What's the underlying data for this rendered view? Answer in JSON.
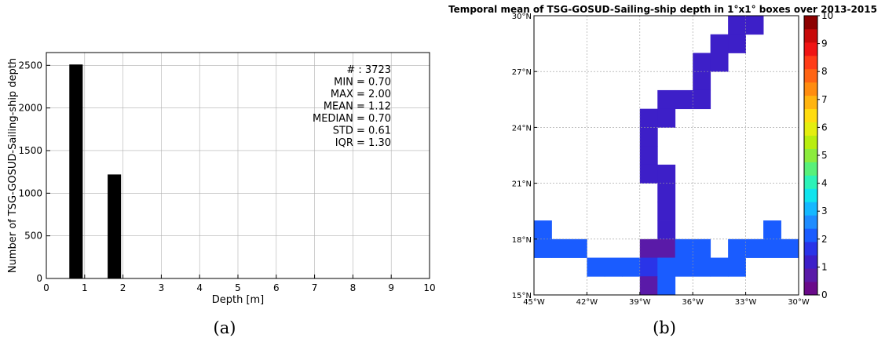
{
  "chart_data": [
    {
      "type": "bar",
      "panel_caption": "(a)",
      "title": "",
      "xlabel": "Depth [m]",
      "ylabel": "Number of TSG-GOSUD-Sailing-ship depth",
      "xlim": [
        0,
        10
      ],
      "ylim": [
        0,
        2650
      ],
      "xticks": [
        "0",
        "1",
        "2",
        "3",
        "4",
        "5",
        "6",
        "7",
        "8",
        "9",
        "10"
      ],
      "yticks": [
        "0",
        "500",
        "1000",
        "1500",
        "2000",
        "2500"
      ],
      "grid": true,
      "bars": [
        {
          "x_start": 0.6,
          "x_end": 0.95,
          "value": 2510
        },
        {
          "x_start": 1.6,
          "x_end": 1.95,
          "value": 1220
        }
      ],
      "stats": [
        "# : 3723",
        "MIN = 0.70",
        "MAX =  2.00",
        "MEAN = 1.12",
        "MEDIAN = 0.70",
        "STD = 0.61",
        "IQR = 1.30"
      ],
      "colors": {
        "bar": "#000000",
        "grid": "#b0b0b0"
      }
    },
    {
      "type": "heatmap",
      "panel_caption": "(b)",
      "title": "Temporal mean of TSG-GOSUD-Sailing-ship depth in 1°x1° boxes over 2013-2015",
      "xlim": [
        -45,
        -30
      ],
      "ylim": [
        15,
        30
      ],
      "xticks": [
        "45°W",
        "42°W",
        "39°W",
        "36°W",
        "33°W",
        "30°W"
      ],
      "yticks": [
        "15°N",
        "18°N",
        "21°N",
        "24°N",
        "27°N",
        "30°N"
      ],
      "grid": true,
      "colorbar": {
        "range": [
          0,
          10
        ],
        "ticks": [
          "0",
          "1",
          "2",
          "3",
          "4",
          "5",
          "6",
          "7",
          "8",
          "9",
          "10"
        ],
        "colors": [
          "#6a0a8a",
          "#5a1aa8",
          "#3d1fc8",
          "#2a34e8",
          "#1a5cff",
          "#1f8cff",
          "#15b8ff",
          "#10e4ee",
          "#2cf2b8",
          "#58f07a",
          "#8cec3e",
          "#b8ee10",
          "#e4ee10",
          "#ffdc10",
          "#ffb410",
          "#ff8c10",
          "#ff6414",
          "#ff3c18",
          "#f01414",
          "#c80a0a",
          "#8c0000"
        ]
      },
      "cells": [
        {
          "lon": -34,
          "lat": 29,
          "value": 1.2
        },
        {
          "lon": -33,
          "lat": 29,
          "value": 1.2
        },
        {
          "lon": -35,
          "lat": 28,
          "value": 1.2
        },
        {
          "lon": -34,
          "lat": 28,
          "value": 1.2
        },
        {
          "lon": -36,
          "lat": 27,
          "value": 1.2
        },
        {
          "lon": -35,
          "lat": 27,
          "value": 1.2
        },
        {
          "lon": -36,
          "lat": 26,
          "value": 1.2
        },
        {
          "lon": -38,
          "lat": 25,
          "value": 1.2
        },
        {
          "lon": -37,
          "lat": 25,
          "value": 1.2
        },
        {
          "lon": -36,
          "lat": 25,
          "value": 1.2
        },
        {
          "lon": -39,
          "lat": 24,
          "value": 1.2
        },
        {
          "lon": -38,
          "lat": 24,
          "value": 1.2
        },
        {
          "lon": -39,
          "lat": 23,
          "value": 1.2
        },
        {
          "lon": -39,
          "lat": 22,
          "value": 1.2
        },
        {
          "lon": -39,
          "lat": 21,
          "value": 1.2
        },
        {
          "lon": -38,
          "lat": 21,
          "value": 1.2
        },
        {
          "lon": -38,
          "lat": 20,
          "value": 1.2
        },
        {
          "lon": -38,
          "lat": 19,
          "value": 1.2
        },
        {
          "lon": -38,
          "lat": 18,
          "value": 1.2
        },
        {
          "lon": -45,
          "lat": 18,
          "value": 2.2
        },
        {
          "lon": -32,
          "lat": 18,
          "value": 2.2
        },
        {
          "lon": -45,
          "lat": 17,
          "value": 2.2
        },
        {
          "lon": -44,
          "lat": 17,
          "value": 2.2
        },
        {
          "lon": -43,
          "lat": 17,
          "value": 2.2
        },
        {
          "lon": -39,
          "lat": 17,
          "value": 0.8
        },
        {
          "lon": -38,
          "lat": 17,
          "value": 0.8
        },
        {
          "lon": -37,
          "lat": 17,
          "value": 2.2
        },
        {
          "lon": -36,
          "lat": 17,
          "value": 2.2
        },
        {
          "lon": -34,
          "lat": 17,
          "value": 2.2
        },
        {
          "lon": -33,
          "lat": 17,
          "value": 2.2
        },
        {
          "lon": -32,
          "lat": 17,
          "value": 2.2
        },
        {
          "lon": -31,
          "lat": 17,
          "value": 2.2
        },
        {
          "lon": -42,
          "lat": 16,
          "value": 2.2
        },
        {
          "lon": -41,
          "lat": 16,
          "value": 2.2
        },
        {
          "lon": -40,
          "lat": 16,
          "value": 2.2
        },
        {
          "lon": -39,
          "lat": 16,
          "value": 1.6
        },
        {
          "lon": -38,
          "lat": 16,
          "value": 2.2
        },
        {
          "lon": -37,
          "lat": 16,
          "value": 2.2
        },
        {
          "lon": -36,
          "lat": 16,
          "value": 2.2
        },
        {
          "lon": -35,
          "lat": 16,
          "value": 2.2
        },
        {
          "lon": -34,
          "lat": 16,
          "value": 2.2
        },
        {
          "lon": -39,
          "lat": 15,
          "value": 0.8
        },
        {
          "lon": -38,
          "lat": 15,
          "value": 2.2
        }
      ]
    }
  ]
}
